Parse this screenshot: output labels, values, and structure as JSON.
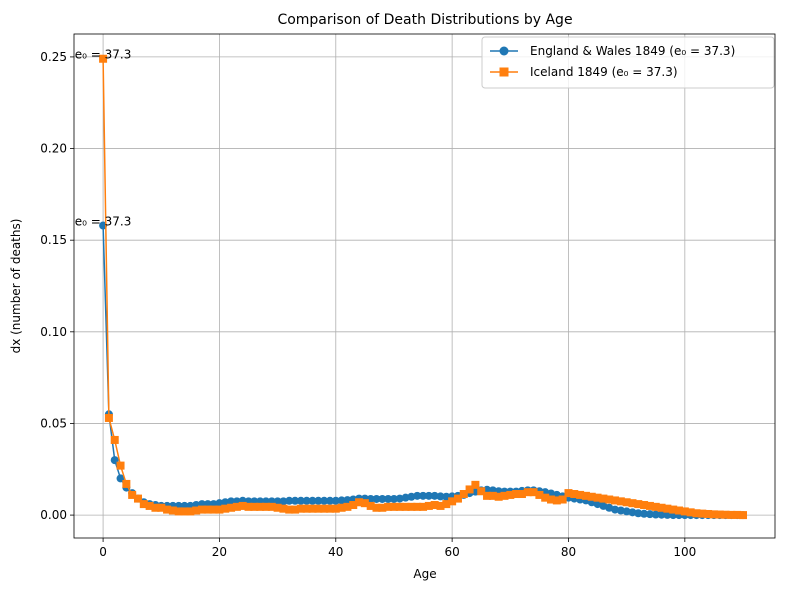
{
  "chart_data": {
    "type": "line",
    "title": "Comparison of Death Distributions by Age",
    "xlabel": "Age",
    "ylabel": "dx (number of deaths)",
    "xlim": [
      -5,
      115.5
    ],
    "ylim": [
      -0.0125,
      0.2625
    ],
    "xticks": [
      0,
      20,
      40,
      60,
      80,
      100
    ],
    "xtick_labels": [
      "0",
      "20",
      "40",
      "60",
      "80",
      "100"
    ],
    "yticks": [
      0.0,
      0.05,
      0.1,
      0.15,
      0.2,
      0.25
    ],
    "ytick_labels": [
      "0.00",
      "0.05",
      "0.10",
      "0.15",
      "0.20",
      "0.25"
    ],
    "grid": true,
    "legend_position": "top-right",
    "x": [
      0,
      1,
      2,
      3,
      4,
      5,
      6,
      7,
      8,
      9,
      10,
      11,
      12,
      13,
      14,
      15,
      16,
      17,
      18,
      19,
      20,
      21,
      22,
      23,
      24,
      25,
      26,
      27,
      28,
      29,
      30,
      31,
      32,
      33,
      34,
      35,
      36,
      37,
      38,
      39,
      40,
      41,
      42,
      43,
      44,
      45,
      46,
      47,
      48,
      49,
      50,
      51,
      52,
      53,
      54,
      55,
      56,
      57,
      58,
      59,
      60,
      61,
      62,
      63,
      64,
      65,
      66,
      67,
      68,
      69,
      70,
      71,
      72,
      73,
      74,
      75,
      76,
      77,
      78,
      79,
      80,
      81,
      82,
      83,
      84,
      85,
      86,
      87,
      88,
      89,
      90,
      91,
      92,
      93,
      94,
      95,
      96,
      97,
      98,
      99,
      100,
      101,
      102,
      103,
      104,
      105,
      106,
      107,
      108,
      109,
      110
    ],
    "series": [
      {
        "name": "England & Wales 1849 (e₀ = 37.3)",
        "color": "#1f77b4",
        "marker": "circle",
        "values": [
          0.158,
          0.055,
          0.03,
          0.02,
          0.015,
          0.012,
          0.009,
          0.007,
          0.006,
          0.0055,
          0.005,
          0.005,
          0.005,
          0.005,
          0.005,
          0.005,
          0.0055,
          0.006,
          0.006,
          0.006,
          0.0065,
          0.007,
          0.0075,
          0.0075,
          0.0078,
          0.0075,
          0.0075,
          0.0075,
          0.0075,
          0.0075,
          0.0075,
          0.0075,
          0.0078,
          0.0078,
          0.0078,
          0.0078,
          0.0078,
          0.0078,
          0.0078,
          0.0078,
          0.0078,
          0.008,
          0.0082,
          0.0085,
          0.009,
          0.009,
          0.0088,
          0.0088,
          0.0088,
          0.0088,
          0.0088,
          0.009,
          0.0095,
          0.01,
          0.0105,
          0.0105,
          0.0105,
          0.0105,
          0.0102,
          0.01,
          0.0102,
          0.0105,
          0.011,
          0.012,
          0.0128,
          0.0135,
          0.0138,
          0.0135,
          0.013,
          0.0128,
          0.0128,
          0.0128,
          0.0132,
          0.0135,
          0.0135,
          0.013,
          0.0125,
          0.0118,
          0.011,
          0.0102,
          0.0095,
          0.009,
          0.0085,
          0.008,
          0.007,
          0.006,
          0.005,
          0.004,
          0.003,
          0.0025,
          0.002,
          0.0015,
          0.001,
          0.0007,
          0.0005,
          0.0003,
          0.0002,
          0.0001,
          0.0,
          0.0,
          0.0,
          0.0,
          0.0,
          0.0,
          0.0,
          0.0,
          0.0,
          0.0,
          0.0,
          0.0,
          0.0
        ]
      },
      {
        "name": "Iceland 1849 (e₀ = 37.3)",
        "color": "#ff7f0e",
        "marker": "square",
        "values": [
          0.249,
          0.053,
          0.041,
          0.027,
          0.017,
          0.011,
          0.009,
          0.006,
          0.005,
          0.004,
          0.004,
          0.003,
          0.0025,
          0.002,
          0.002,
          0.002,
          0.0025,
          0.003,
          0.003,
          0.003,
          0.003,
          0.0035,
          0.004,
          0.0045,
          0.005,
          0.0045,
          0.0045,
          0.0045,
          0.0045,
          0.0045,
          0.004,
          0.0035,
          0.003,
          0.003,
          0.0035,
          0.0035,
          0.0035,
          0.0035,
          0.0035,
          0.0035,
          0.0035,
          0.004,
          0.0045,
          0.0055,
          0.007,
          0.0065,
          0.005,
          0.004,
          0.004,
          0.0045,
          0.0045,
          0.0045,
          0.0045,
          0.0045,
          0.0045,
          0.0045,
          0.005,
          0.0055,
          0.005,
          0.006,
          0.0075,
          0.009,
          0.0115,
          0.014,
          0.0165,
          0.013,
          0.0105,
          0.0105,
          0.01,
          0.0105,
          0.011,
          0.0115,
          0.0115,
          0.0125,
          0.0125,
          0.011,
          0.0095,
          0.0085,
          0.008,
          0.0085,
          0.012,
          0.0115,
          0.011,
          0.0105,
          0.01,
          0.0095,
          0.009,
          0.0085,
          0.008,
          0.0075,
          0.007,
          0.0065,
          0.006,
          0.0055,
          0.005,
          0.0045,
          0.004,
          0.0035,
          0.003,
          0.0025,
          0.002,
          0.0015,
          0.001,
          0.0008,
          0.0006,
          0.0004,
          0.0003,
          0.0002,
          0.0001,
          0.0001,
          0.0
        ]
      }
    ],
    "annotations": [
      {
        "text": "e₀ = 37.3",
        "x": 0,
        "y": 0.249
      },
      {
        "text": "e₀ = 37.3",
        "x": 0,
        "y": 0.158
      }
    ]
  }
}
